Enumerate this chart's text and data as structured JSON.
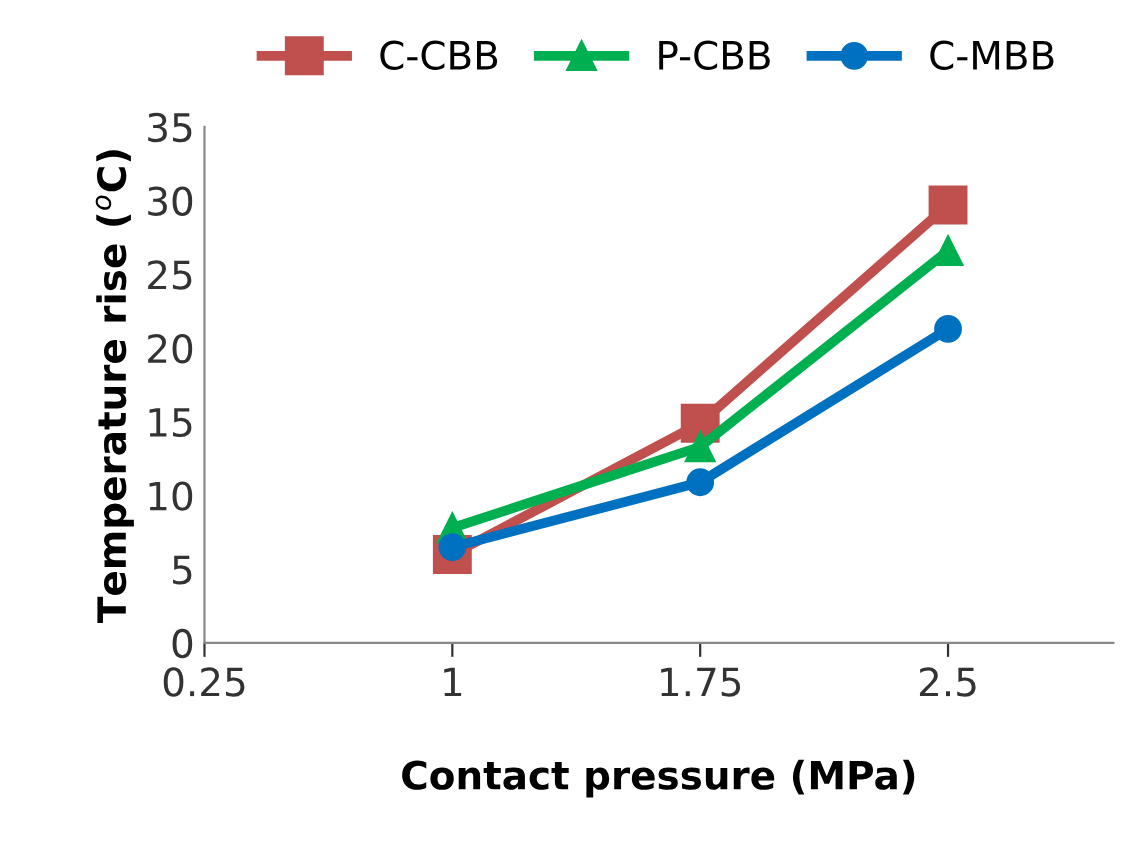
{
  "chart_data": {
    "type": "line",
    "xlabel": "Contact pressure (MPa)",
    "ylabel": "Temperature rise ($^{o}$C)",
    "x": [
      1,
      1.75,
      2.5
    ],
    "series": [
      {
        "name": "C-CBB",
        "color": "#c0504d",
        "marker": "square",
        "values": [
          6.0,
          14.9,
          29.7
        ]
      },
      {
        "name": "P-CBB",
        "color": "#00b050",
        "marker": "triangle",
        "values": [
          7.8,
          13.3,
          26.6
        ]
      },
      {
        "name": "C-MBB",
        "color": "#0070c0",
        "marker": "circle",
        "values": [
          6.5,
          10.9,
          21.3
        ]
      }
    ],
    "xlim": [
      0.25,
      3.0
    ],
    "xticks": [
      0.25,
      1,
      1.75,
      2.5
    ],
    "ylim": [
      0,
      35
    ],
    "yticks": [
      0,
      5,
      10,
      15,
      20,
      25,
      30,
      35
    ],
    "grid": false,
    "legend": "top",
    "line_style": "solid"
  }
}
